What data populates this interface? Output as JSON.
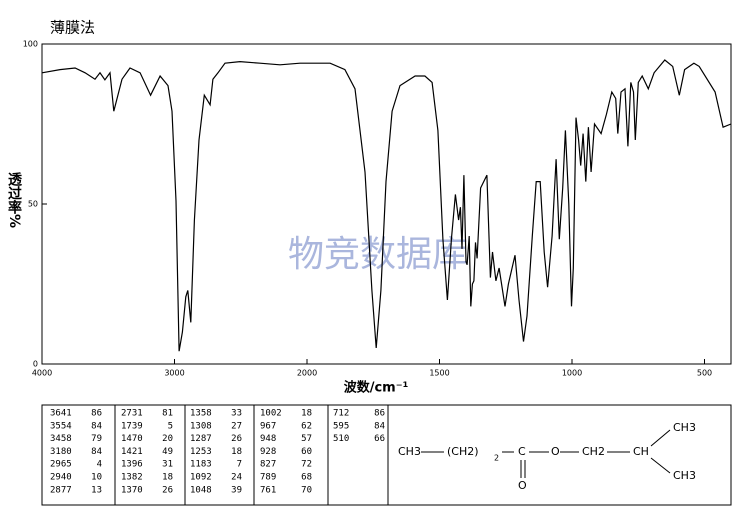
{
  "chart_data": {
    "type": "line",
    "title": "薄膜法",
    "xlabel": "波数/cm⁻¹",
    "ylabel": "透过率%",
    "watermark": "物竞数据库",
    "x": [
      4000,
      3864,
      3750,
      3675,
      3600,
      3562,
      3525,
      3487,
      3458,
      3396,
      3336,
      3260,
      3180,
      3109,
      3049,
      3019,
      2989,
      2965,
      2940,
      2915,
      2900,
      2877,
      2850,
      2815,
      2775,
      2731,
      2710,
      2672,
      2619,
      2506,
      2355,
      2204,
      2053,
      1989,
      1913,
      1857,
      1819,
      1781,
      1755,
      1739,
      1721,
      1702,
      1679,
      1649,
      1592,
      1555,
      1528,
      1506,
      1487,
      1470,
      1455,
      1440,
      1428,
      1421,
      1415,
      1408,
      1400,
      1396,
      1388,
      1382,
      1376,
      1370,
      1364,
      1358,
      1345,
      1321,
      1308,
      1300,
      1287,
      1275,
      1253,
      1240,
      1215,
      1200,
      1183,
      1170,
      1150,
      1135,
      1120,
      1105,
      1092,
      1075,
      1060,
      1048,
      1035,
      1025,
      1012,
      1002,
      995,
      985,
      975,
      967,
      958,
      948,
      938,
      928,
      915,
      890,
      870,
      850,
      835,
      827,
      815,
      800,
      789,
      778,
      768,
      761,
      750,
      735,
      712,
      690,
      650,
      620,
      595,
      575,
      540,
      520,
      460,
      430,
      400
    ],
    "series": [
      {
        "color": "#000000",
        "values": [
          91,
          92,
          92.5,
          91,
          89,
          91,
          88.8,
          91,
          79,
          89,
          92.5,
          91,
          84,
          90,
          87,
          79,
          51,
          4,
          10,
          21,
          23,
          13,
          45,
          70,
          84,
          81,
          89,
          91,
          94,
          94.5,
          94,
          93.5,
          94,
          94,
          94,
          92,
          86,
          60,
          23,
          5,
          23,
          57,
          79,
          87,
          90,
          90,
          88,
          73,
          39,
          20,
          39,
          53,
          45,
          49,
          36,
          59,
          32,
          31,
          40,
          18,
          25,
          26,
          38,
          33,
          55,
          59,
          27,
          35,
          26,
          30,
          18,
          25,
          34,
          20,
          7,
          15,
          40,
          57,
          57,
          35,
          24,
          40,
          64,
          39,
          55,
          73,
          50,
          18,
          30,
          77,
          70,
          62,
          72,
          57,
          74,
          60,
          75,
          72,
          78,
          85,
          83,
          72,
          85,
          86,
          68,
          88,
          85,
          70,
          88,
          90,
          86,
          91,
          95,
          93,
          84,
          92,
          94,
          93,
          85,
          74,
          75
        ]
      }
    ],
    "xlim": [
      4000,
      400
    ],
    "xbreak": 2000,
    "ylim": [
      0,
      100
    ],
    "xticks": [
      4000,
      3000,
      2000,
      1500,
      1000,
      500
    ],
    "yticks": [
      0,
      50,
      100
    ]
  },
  "peak_table": [
    [
      [
        3641,
        86
      ],
      [
        3554,
        84
      ],
      [
        3458,
        79
      ],
      [
        3180,
        84
      ],
      [
        2965,
        4
      ],
      [
        2940,
        10
      ],
      [
        2877,
        13
      ]
    ],
    [
      [
        2731,
        81
      ],
      [
        1739,
        5
      ],
      [
        1470,
        20
      ],
      [
        1421,
        49
      ],
      [
        1396,
        31
      ],
      [
        1382,
        18
      ],
      [
        1370,
        26
      ]
    ],
    [
      [
        1358,
        33
      ],
      [
        1308,
        27
      ],
      [
        1287,
        26
      ],
      [
        1253,
        18
      ],
      [
        1183,
        7
      ],
      [
        1092,
        24
      ],
      [
        1048,
        39
      ]
    ],
    [
      [
        1002,
        18
      ],
      [
        967,
        62
      ],
      [
        948,
        57
      ],
      [
        928,
        60
      ],
      [
        827,
        72
      ],
      [
        789,
        68
      ],
      [
        761,
        70
      ]
    ],
    [
      [
        712,
        86
      ],
      [
        595,
        84
      ],
      [
        510,
        66
      ]
    ]
  ],
  "structure": {
    "labels": [
      "CH3",
      "(CH2)",
      "2",
      "C",
      "O",
      "O",
      "CH2",
      "CH",
      "CH3",
      "CH3"
    ]
  }
}
